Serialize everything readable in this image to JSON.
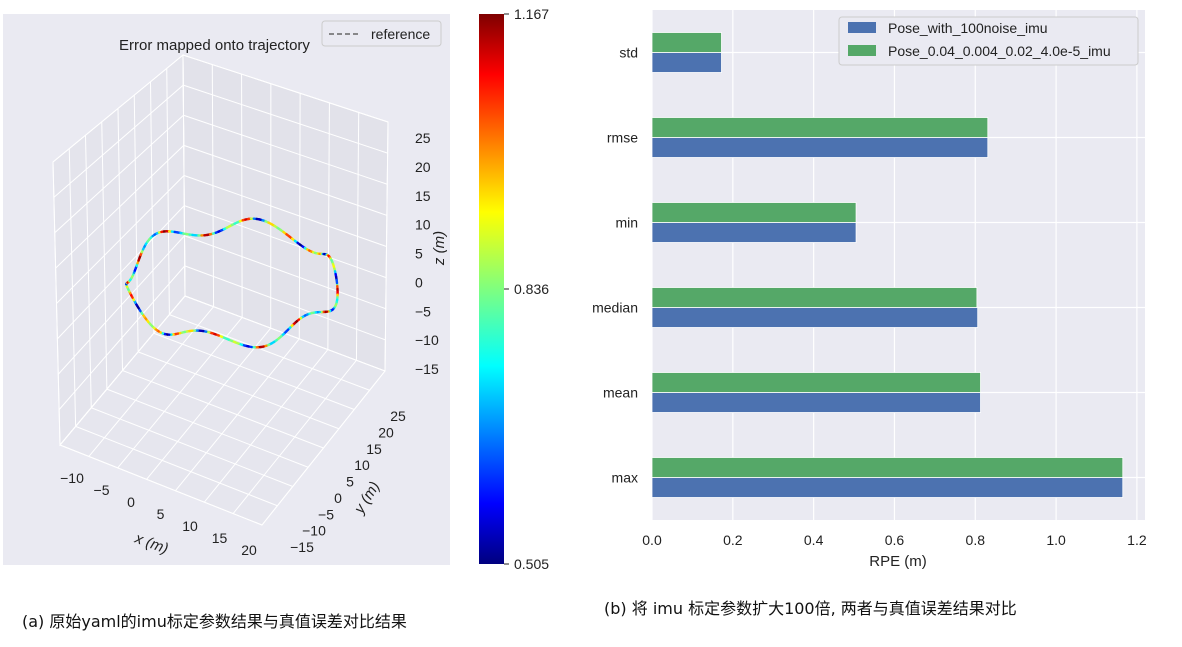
{
  "captions": {
    "a": "(a) 原始yaml的imu标定参数结果与真值误差对比结果",
    "b": "(b) 将 imu 标定参数扩大100倍, 两者与真值误差结果对比"
  },
  "chart_data": [
    {
      "type": "scatter",
      "title": "Error mapped onto trajectory",
      "legend": [
        "reference"
      ],
      "legend_placement": "top-right",
      "xlabel": "x (m)",
      "ylabel": "y (m)",
      "zlabel": "z (m)",
      "x_ticks": [
        "−10",
        "−5",
        "0",
        "5",
        "10",
        "15",
        "20"
      ],
      "y_ticks": [
        "−15",
        "−10",
        "−5",
        "0",
        "5",
        "10",
        "15",
        "20",
        "25"
      ],
      "z_ticks": [
        "25",
        "20",
        "15",
        "10",
        "5",
        "0",
        "−5",
        "−10",
        "−15"
      ],
      "colorbar": {
        "min": 0.505,
        "max": 1.167,
        "ticks": [
          "1.167",
          "0.836",
          "0.505"
        ],
        "colormap": "jet"
      },
      "grid": true
    },
    {
      "type": "bar",
      "orientation": "horizontal",
      "categories": [
        "max",
        "mean",
        "median",
        "min",
        "rmse",
        "std"
      ],
      "series": [
        {
          "name": "Pose_with_100noise_imu",
          "color": "#4c72b0",
          "values": [
            1.165,
            0.813,
            0.806,
            0.505,
            0.831,
            0.172
          ]
        },
        {
          "name": "Pose_0.04_0.004_0.02_4.0e-5_imu",
          "color": "#55a868",
          "values": [
            1.165,
            0.813,
            0.804,
            0.505,
            0.831,
            0.172
          ]
        }
      ],
      "xlabel": "RPE (m)",
      "ylabel": "",
      "xlim": [
        0,
        1.22
      ],
      "x_ticks": [
        "0.0",
        "0.2",
        "0.4",
        "0.6",
        "0.8",
        "1.0",
        "1.2"
      ],
      "legend_placement": "top-right",
      "grid": true
    }
  ]
}
